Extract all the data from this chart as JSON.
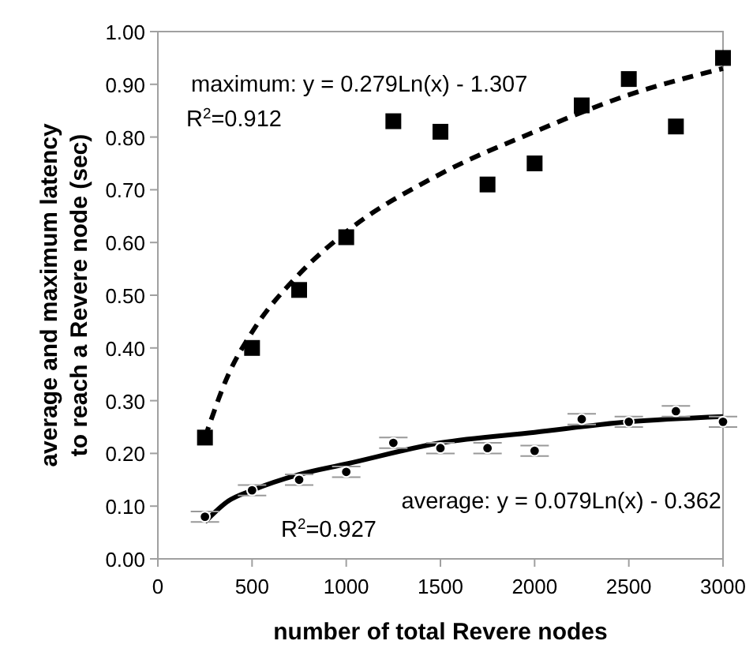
{
  "chart_data": {
    "type": "scatter",
    "xlabel": "number of total Revere nodes",
    "ylabel": "average and maximum latency to reach a Revere node (sec)",
    "x": [
      250,
      500,
      750,
      1000,
      1250,
      1500,
      1750,
      2000,
      2250,
      2500,
      2750,
      3000
    ],
    "xlim": [
      0,
      3000
    ],
    "xticks": [
      0,
      500,
      1000,
      1500,
      2000,
      2500,
      3000
    ],
    "ylim": [
      0,
      1
    ],
    "yticks": [
      {
        "value": 0,
        "label": "0.00"
      },
      {
        "value": 0.1,
        "label": "0.10"
      },
      {
        "value": 0.2,
        "label": "0.20"
      },
      {
        "value": 0.3,
        "label": "0.30"
      },
      {
        "value": 0.4,
        "label": "0.40"
      },
      {
        "value": 0.5,
        "label": "0.50"
      },
      {
        "value": 0.6,
        "label": "0.60"
      },
      {
        "value": 0.7,
        "label": "0.70"
      },
      {
        "value": 0.8,
        "label": "0.80"
      },
      {
        "value": 0.9,
        "label": "0.90"
      },
      {
        "value": 1,
        "label": "1.00"
      }
    ],
    "grid": false,
    "series": [
      {
        "marker": "square",
        "color": "#000000",
        "values": [
          0.23,
          0.4,
          0.51,
          0.61,
          0.83,
          0.81,
          0.71,
          0.75,
          0.86,
          0.91,
          0.82,
          0.95
        ]
      },
      {
        "marker": "circle",
        "color": "#000000",
        "values": [
          0.08,
          0.13,
          0.15,
          0.165,
          0.22,
          0.21,
          0.21,
          0.205,
          0.265,
          0.26,
          0.28,
          0.26
        ],
        "errors": [
          0.01,
          0.01,
          0.01,
          0.01,
          0.01,
          0.01,
          0.01,
          0.01,
          0.01,
          0.01,
          0.01,
          0.01
        ]
      },
      {
        "type": "line",
        "line_style": "dashed",
        "color": "#000000",
        "x": [
          250,
          375,
          500,
          750,
          1000,
          1500,
          2000,
          2500,
          3000
        ],
        "values": [
          0.23,
          0.35,
          0.43,
          0.54,
          0.62,
          0.73,
          0.81,
          0.88,
          0.93
        ]
      },
      {
        "type": "line",
        "line_style": "solid",
        "color": "#000000",
        "x": [
          250,
          375,
          500,
          750,
          1000,
          1500,
          2000,
          2500,
          3000
        ],
        "values": [
          0.07,
          0.11,
          0.13,
          0.16,
          0.18,
          0.22,
          0.24,
          0.26,
          0.27
        ]
      }
    ],
    "annotations": [
      "maximum: y = 0.279Ln(x) - 1.307",
      "R$^{2}$=0.912",
      "average: y = 0.079Ln(x) - 0.362",
      "R$^{2}$=0.927"
    ]
  }
}
